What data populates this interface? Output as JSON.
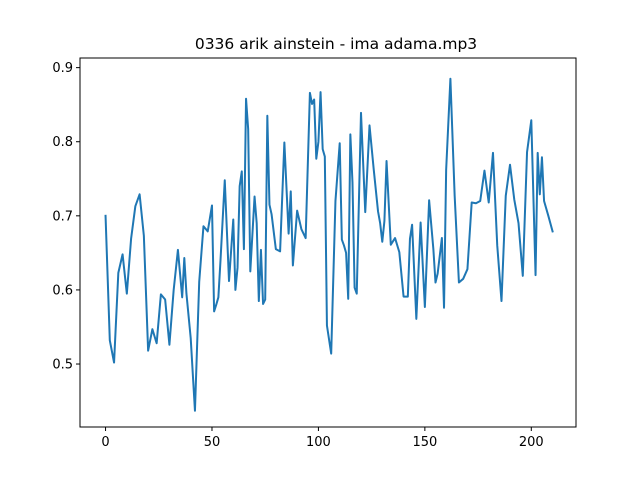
{
  "chart_data": {
    "type": "line",
    "title": "0336 arik ainstein - ima adama.mp3",
    "xlabel": "",
    "ylabel": "",
    "xlim": [
      -12,
      221
    ],
    "ylim": [
      0.415,
      0.913
    ],
    "xticks": [
      0,
      50,
      100,
      150,
      200
    ],
    "yticks": [
      0.5,
      0.6,
      0.7,
      0.8,
      0.9
    ],
    "xtick_labels": [
      "0",
      "50",
      "100",
      "150",
      "200"
    ],
    "ytick_labels": [
      "0.5",
      "0.6",
      "0.7",
      "0.8",
      "0.9"
    ],
    "grid": false,
    "series": [
      {
        "color": "#1f77b4",
        "x": [
          0,
          2,
          4,
          6,
          8,
          10,
          12,
          14,
          16,
          18,
          20,
          22,
          24,
          26,
          28,
          30,
          32,
          34,
          36,
          37,
          38,
          40,
          42,
          44,
          46,
          48,
          50,
          51,
          52,
          53,
          54,
          56,
          58,
          60,
          61,
          62,
          63,
          64,
          65,
          66,
          67,
          68,
          70,
          71,
          72,
          73,
          74,
          75,
          76,
          77,
          78,
          80,
          82,
          84,
          86,
          87,
          88,
          90,
          92,
          94,
          96,
          97,
          98,
          99,
          100,
          101,
          102,
          103,
          104,
          106,
          108,
          110,
          111,
          112,
          113,
          114,
          115,
          116,
          117,
          118,
          120,
          122,
          124,
          126,
          128,
          129,
          130,
          131,
          132,
          134,
          136,
          138,
          140,
          142,
          143,
          144,
          146,
          148,
          150,
          152,
          154,
          155,
          156,
          158,
          159,
          160,
          162,
          164,
          166,
          168,
          170,
          172,
          174,
          176,
          178,
          180,
          182,
          184,
          186,
          188,
          190,
          192,
          194,
          196,
          198,
          200,
          202,
          203,
          204,
          205,
          206,
          208,
          210
        ],
        "y": [
          0.7,
          0.532,
          0.502,
          0.623,
          0.648,
          0.595,
          0.669,
          0.713,
          0.729,
          0.673,
          0.518,
          0.547,
          0.528,
          0.594,
          0.587,
          0.526,
          0.6,
          0.654,
          0.59,
          0.643,
          0.595,
          0.535,
          0.437,
          0.611,
          0.686,
          0.679,
          0.714,
          0.571,
          0.58,
          0.59,
          0.64,
          0.748,
          0.612,
          0.695,
          0.6,
          0.63,
          0.74,
          0.76,
          0.655,
          0.858,
          0.817,
          0.625,
          0.726,
          0.69,
          0.585,
          0.654,
          0.581,
          0.587,
          0.835,
          0.715,
          0.702,
          0.655,
          0.652,
          0.799,
          0.676,
          0.733,
          0.633,
          0.707,
          0.682,
          0.67,
          0.866,
          0.851,
          0.857,
          0.777,
          0.8,
          0.867,
          0.79,
          0.78,
          0.552,
          0.514,
          0.72,
          0.798,
          0.668,
          0.66,
          0.65,
          0.588,
          0.81,
          0.745,
          0.603,
          0.595,
          0.839,
          0.705,
          0.822,
          0.762,
          0.706,
          0.69,
          0.665,
          0.693,
          0.774,
          0.661,
          0.67,
          0.651,
          0.591,
          0.591,
          0.669,
          0.688,
          0.561,
          0.691,
          0.577,
          0.721,
          0.655,
          0.61,
          0.622,
          0.67,
          0.576,
          0.762,
          0.885,
          0.727,
          0.61,
          0.615,
          0.628,
          0.718,
          0.717,
          0.72,
          0.761,
          0.718,
          0.785,
          0.66,
          0.585,
          0.727,
          0.769,
          0.722,
          0.69,
          0.619,
          0.786,
          0.829,
          0.62,
          0.785,
          0.729,
          0.779,
          0.72,
          0.7,
          0.679
        ]
      }
    ]
  }
}
